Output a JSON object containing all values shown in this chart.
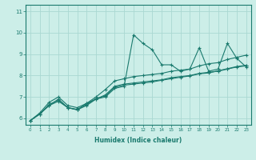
{
  "xlabel": "Humidex (Indice chaleur)",
  "ylabel": "",
  "x": [
    0,
    1,
    2,
    3,
    4,
    5,
    6,
    7,
    8,
    9,
    10,
    11,
    12,
    13,
    14,
    15,
    16,
    17,
    18,
    19,
    20,
    21,
    22,
    23
  ],
  "line1": [
    5.9,
    6.2,
    6.6,
    6.8,
    6.5,
    6.4,
    6.6,
    6.9,
    7.0,
    7.4,
    7.5,
    9.9,
    9.5,
    9.2,
    8.5,
    8.5,
    8.2,
    8.3,
    9.3,
    8.2,
    8.3,
    9.5,
    8.8,
    8.4
  ],
  "line2": [
    5.9,
    6.2,
    6.6,
    6.9,
    6.5,
    6.4,
    6.7,
    6.9,
    7.1,
    7.5,
    7.6,
    7.65,
    7.7,
    7.75,
    7.8,
    7.9,
    7.95,
    8.0,
    8.1,
    8.15,
    8.2,
    8.3,
    8.4,
    8.45
  ],
  "line3": [
    5.9,
    6.2,
    6.65,
    6.85,
    6.5,
    6.42,
    6.65,
    6.92,
    7.05,
    7.45,
    7.55,
    7.6,
    7.65,
    7.7,
    7.78,
    7.85,
    7.92,
    7.98,
    8.08,
    8.12,
    8.22,
    8.32,
    8.42,
    8.48
  ],
  "line4": [
    5.9,
    6.25,
    6.75,
    7.0,
    6.6,
    6.5,
    6.7,
    7.0,
    7.35,
    7.75,
    7.85,
    7.95,
    8.0,
    8.05,
    8.1,
    8.2,
    8.25,
    8.3,
    8.45,
    8.55,
    8.6,
    8.75,
    8.85,
    8.95
  ],
  "line_color": "#1a7a6e",
  "bg_color": "#cceee8",
  "grid_color": "#aad8d2",
  "ylim": [
    5.7,
    11.3
  ],
  "xlim": [
    -0.5,
    23.5
  ],
  "yticks": [
    6,
    7,
    8,
    9,
    10,
    11
  ],
  "xticks": [
    0,
    1,
    2,
    3,
    4,
    5,
    6,
    7,
    8,
    9,
    10,
    11,
    12,
    13,
    14,
    15,
    16,
    17,
    18,
    19,
    20,
    21,
    22,
    23
  ]
}
